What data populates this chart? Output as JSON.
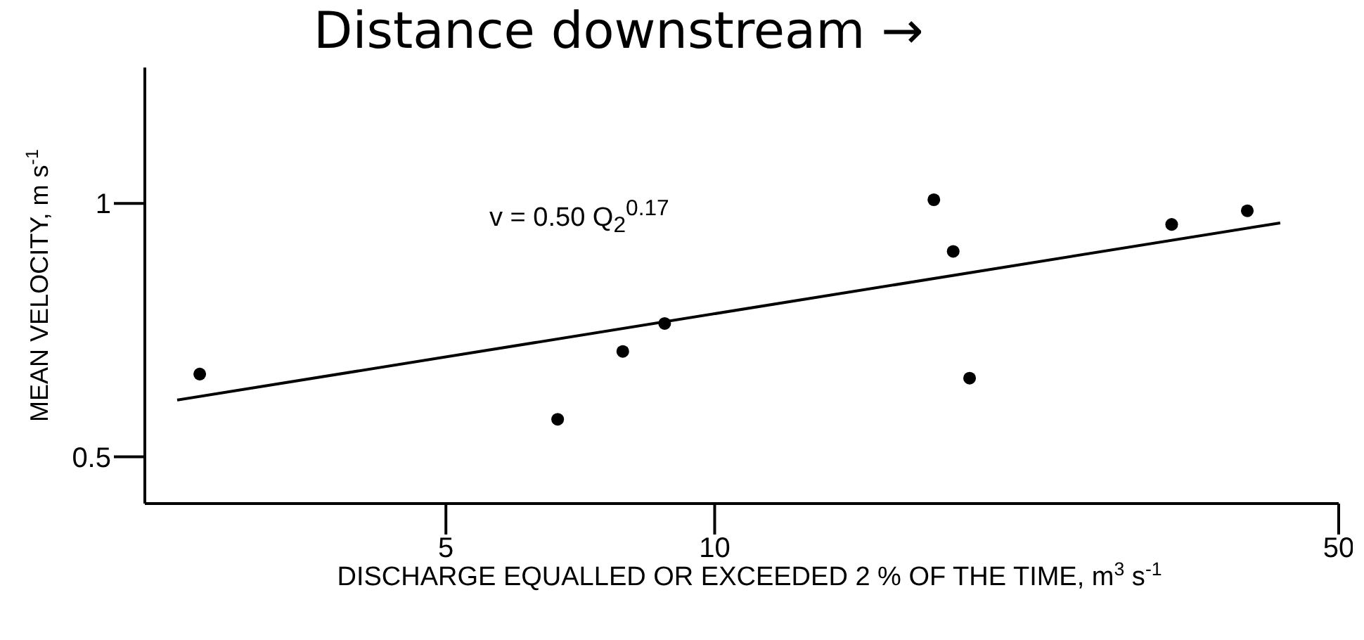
{
  "chart_data": {
    "type": "scatter",
    "title": "Distance downstream →",
    "xlabel": "DISCHARGE EQUALLED OR EXCEEDED 2 % OF THE TIME, m$^{3}$ s$^{-1}$",
    "ylabel": "MEAN VELOCITY, m s$^{-1}$",
    "annotations": [
      "v = 0.50 Q$_{2}$$^{0.17}$"
    ],
    "log": "xy",
    "xlim": [
      2.3,
      50
    ],
    "xticks": [
      5,
      10,
      50
    ],
    "ylim": [
      0.44,
      1.45
    ],
    "yticks": [
      0.5,
      1
    ],
    "grid": false,
    "marker": "circle",
    "series": [
      {
        "color": "#000000",
        "x": [
          2.65,
          6.67,
          7.89,
          8.79,
          17.6,
          18.5,
          19.3,
          32.5,
          39.5
        ],
        "values": [
          0.627,
          0.554,
          0.667,
          0.72,
          1.01,
          0.877,
          0.62,
          0.944,
          0.98
        ]
      },
      {
        "type": "line",
        "color": "#000000",
        "marker": "none",
        "line_style": "solid",
        "x": [
          2.5,
          43
        ],
        "values": [
          0.584,
          0.948
        ]
      }
    ]
  }
}
